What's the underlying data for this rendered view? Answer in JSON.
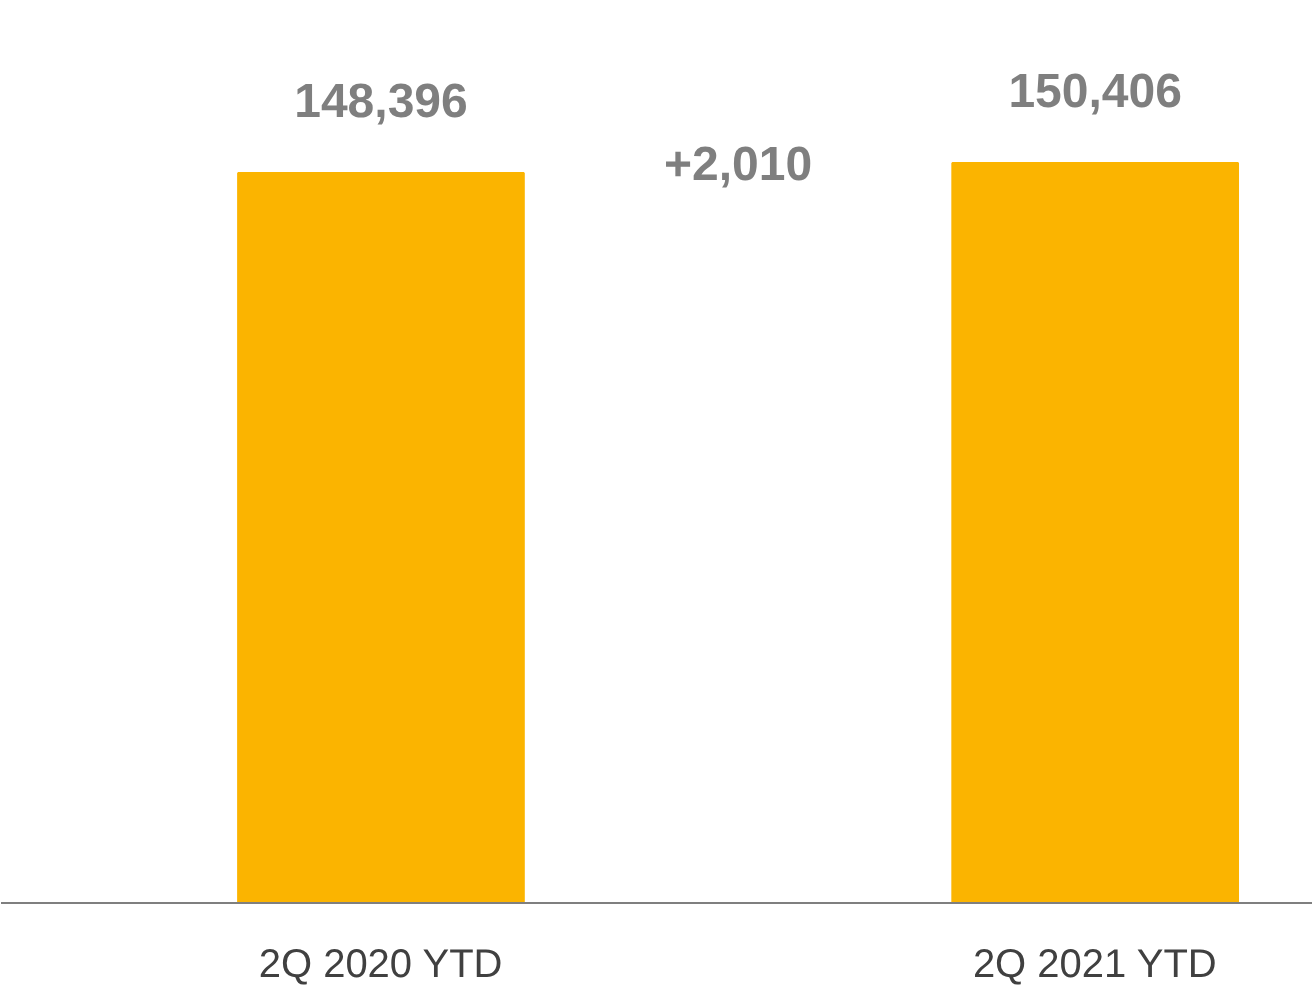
{
  "chart_data": {
    "type": "bar",
    "categories": [
      "2Q 2020 YTD",
      "2Q 2021 YTD"
    ],
    "values": [
      148396,
      150406
    ],
    "color": "#fbb400",
    "data_labels": true,
    "value_labels": [
      "148,396",
      "150,406"
    ],
    "annotations": [
      "+2,010"
    ],
    "grid": false
  }
}
